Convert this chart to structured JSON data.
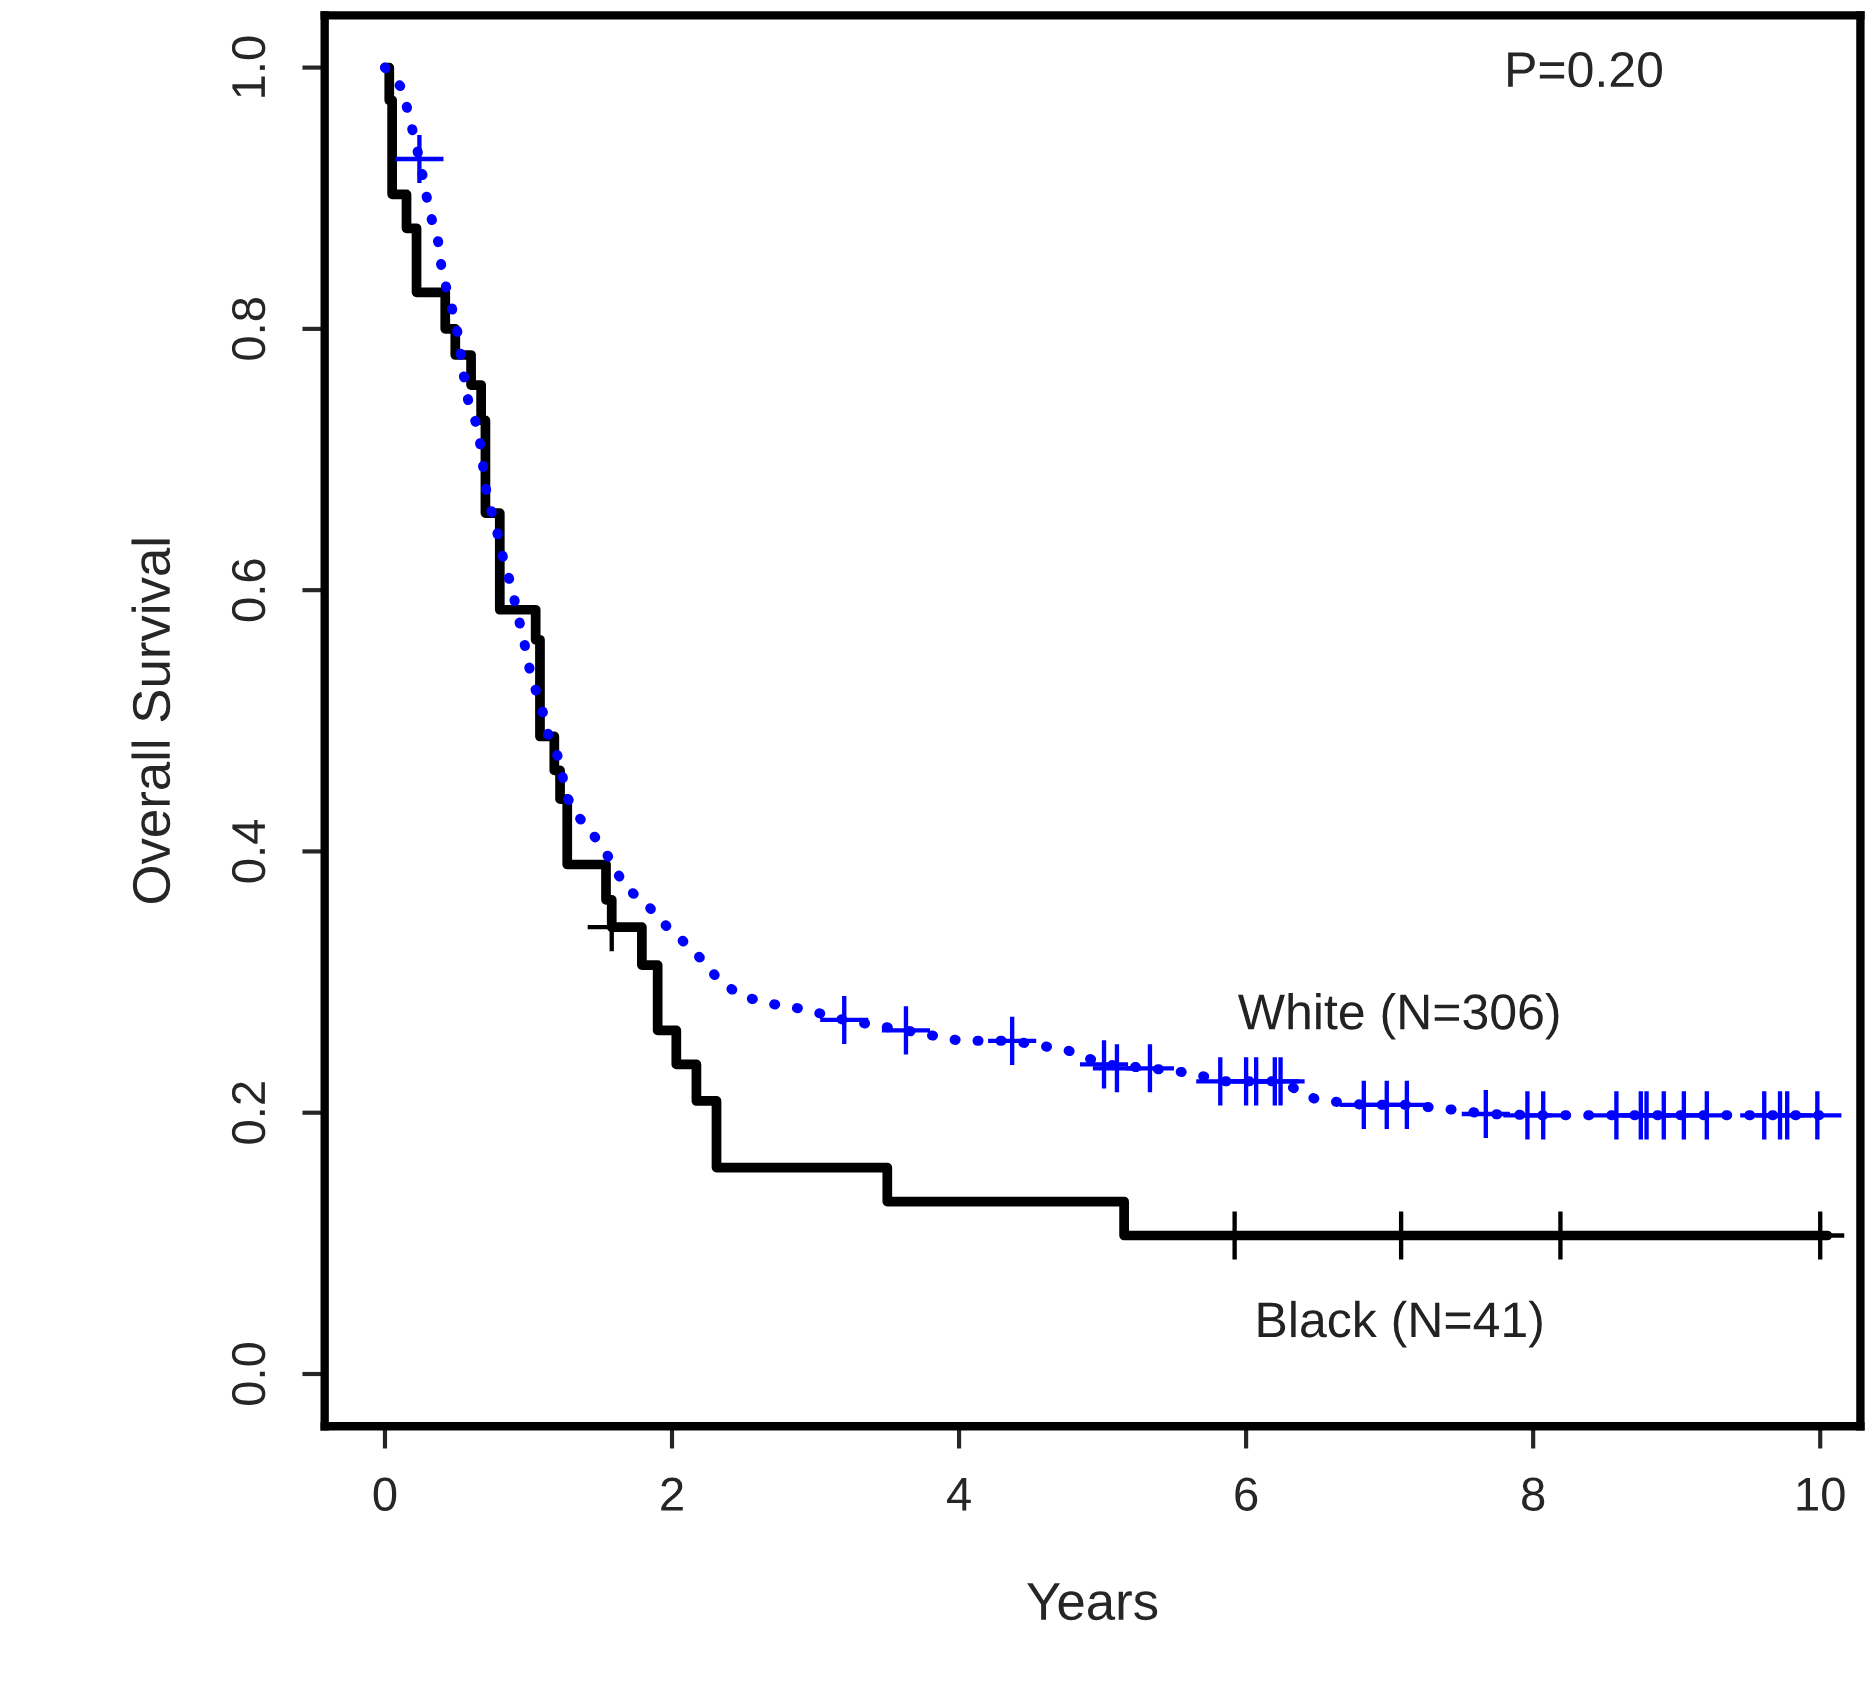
{
  "chart_data": {
    "type": "step",
    "xlabel": "Years",
    "ylabel": "Overall Survival",
    "annotations": [
      "P=0.20"
    ],
    "xlim": [
      -0.42,
      10.28
    ],
    "ylim": [
      -0.04,
      1.04
    ],
    "xticks": [
      0,
      2,
      4,
      6,
      8,
      10
    ],
    "yticks": [
      {
        "value": 0,
        "label": "0.0"
      },
      {
        "value": 0.2,
        "label": "0.2"
      },
      {
        "value": 0.4,
        "label": "0.4"
      },
      {
        "value": 0.6,
        "label": "0.6"
      },
      {
        "value": 0.8,
        "label": "0.8"
      },
      {
        "value": 1,
        "label": "1.0"
      }
    ],
    "grid": false,
    "series": [
      {
        "name": "White (N=306)",
        "type": "line",
        "line_style": "dotted",
        "color": "#0000ff",
        "x": [
          0,
          0.12,
          0.17,
          0.24,
          0.31,
          0.37,
          0.4,
          0.46,
          0.51,
          0.54,
          0.58,
          0.65,
          0.68,
          0.71,
          0.77,
          0.82,
          0.88,
          0.93,
          0.98,
          1.02,
          1.09,
          1.14,
          1.22,
          1.26,
          1.36,
          1.47,
          1.58,
          1.67,
          1.82,
          1.94,
          2.08,
          2.21,
          2.33,
          2.49,
          2.71,
          2.93,
          3.2,
          3.63,
          4.01,
          4.37,
          4.75,
          5.01,
          5.33,
          5.64,
          5.82,
          6.24,
          6.49,
          6.82,
          7.12,
          7.47,
          7.67,
          8.07,
          8.58,
          9.21,
          9.61,
          10.14
        ],
        "values": [
          1.0,
          0.984,
          0.962,
          0.93,
          0.89,
          0.867,
          0.842,
          0.819,
          0.795,
          0.77,
          0.745,
          0.723,
          0.698,
          0.672,
          0.65,
          0.626,
          0.603,
          0.579,
          0.555,
          0.533,
          0.511,
          0.488,
          0.469,
          0.443,
          0.425,
          0.41,
          0.392,
          0.373,
          0.36,
          0.345,
          0.331,
          0.317,
          0.301,
          0.289,
          0.283,
          0.279,
          0.271,
          0.263,
          0.255,
          0.255,
          0.248,
          0.237,
          0.234,
          0.23,
          0.224,
          0.224,
          0.21,
          0.206,
          0.206,
          0.202,
          0.199,
          0.198,
          0.198,
          0.198,
          0.198,
          0.198
        ]
      },
      {
        "type": "scatter",
        "marker": "cross",
        "color": "#0000ff",
        "x": [
          0.24,
          3.2,
          3.63,
          4.37,
          5.01,
          5.1,
          5.33,
          5.82,
          6.0,
          6.07,
          6.2,
          6.24,
          6.82,
          6.98,
          7.12,
          7.67,
          7.96,
          8.07,
          8.58,
          8.75,
          8.79,
          8.91,
          9.05,
          9.21,
          9.61,
          9.72,
          9.77,
          9.98
        ],
        "values": [
          0.93,
          0.271,
          0.263,
          0.255,
          0.237,
          0.234,
          0.234,
          0.224,
          0.224,
          0.224,
          0.224,
          0.224,
          0.206,
          0.206,
          0.206,
          0.199,
          0.198,
          0.198,
          0.198,
          0.198,
          0.198,
          0.198,
          0.198,
          0.198,
          0.198,
          0.198,
          0.198,
          0.198
        ]
      },
      {
        "name": "Black (N=41)",
        "line_style": "solid",
        "color": "#000000",
        "x": [
          0,
          0.03,
          0.05,
          0.15,
          0.22,
          0.42,
          0.49,
          0.6,
          0.67,
          0.7,
          0.8,
          1.05,
          1.08,
          1.18,
          1.22,
          1.27,
          1.54,
          1.58,
          1.79,
          1.9,
          2.03,
          2.17,
          2.31,
          3.5,
          5.15,
          10.05
        ],
        "values": [
          1.0,
          0.975,
          0.903,
          0.877,
          0.828,
          0.8,
          0.78,
          0.757,
          0.73,
          0.659,
          0.585,
          0.562,
          0.488,
          0.462,
          0.44,
          0.39,
          0.363,
          0.342,
          0.313,
          0.263,
          0.237,
          0.209,
          0.158,
          0.132,
          0.106,
          0.106
        ]
      },
      {
        "type": "scatter",
        "marker": "cross",
        "color": "#000000",
        "x": [
          1.58,
          5.92,
          7.08,
          8.19,
          10.0
        ],
        "values": [
          0.342,
          0.106,
          0.106,
          0.106,
          0.106
        ]
      }
    ]
  }
}
